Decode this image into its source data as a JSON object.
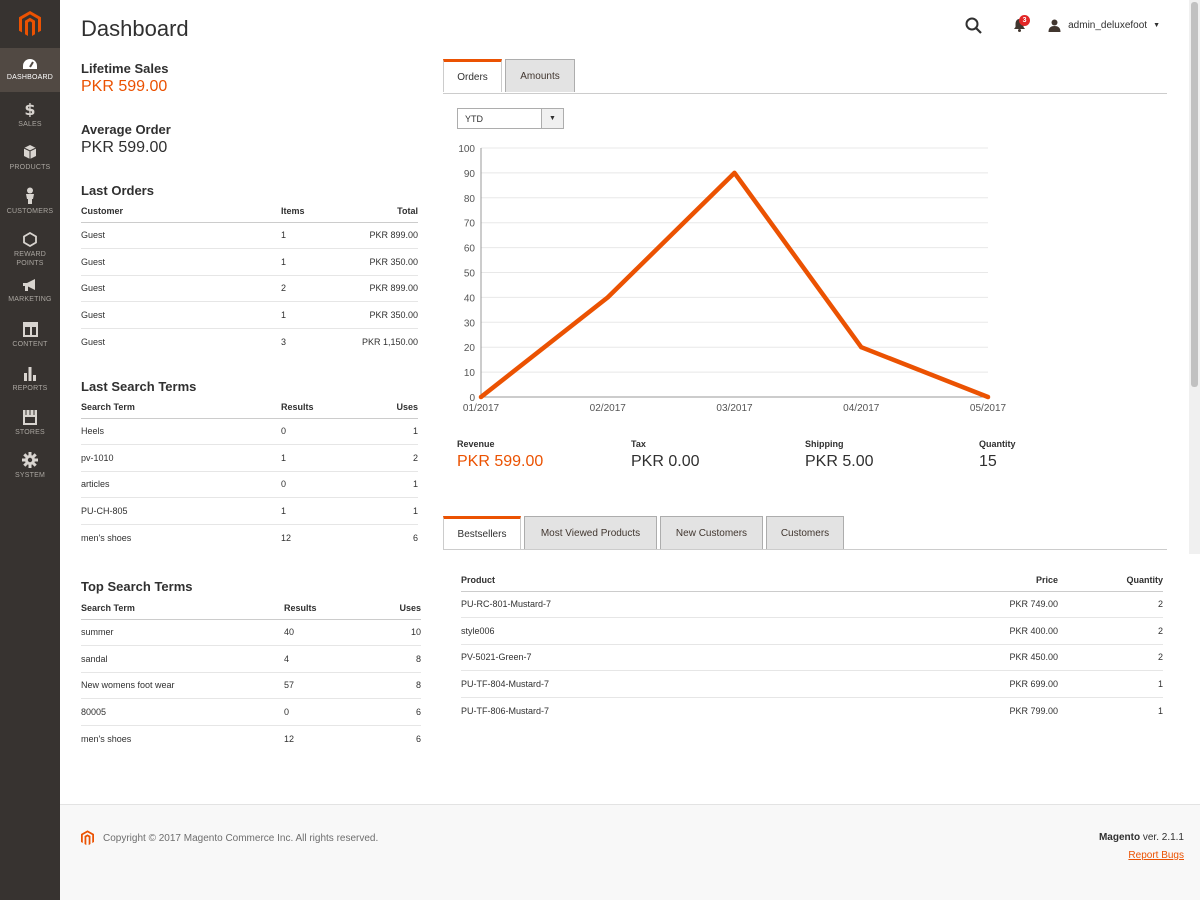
{
  "nav": {
    "items": [
      {
        "label": "DASHBOARD",
        "icon": "dashboard-icon"
      },
      {
        "label": "SALES",
        "icon": "dollar-icon"
      },
      {
        "label": "PRODUCTS",
        "icon": "box-icon"
      },
      {
        "label": "CUSTOMERS",
        "icon": "person-icon"
      },
      {
        "label": "REWARD POINTS",
        "icon": "hexagon-icon"
      },
      {
        "label": "MARKETING",
        "icon": "megaphone-icon"
      },
      {
        "label": "CONTENT",
        "icon": "layout-icon"
      },
      {
        "label": "REPORTS",
        "icon": "bar-chart-icon"
      },
      {
        "label": "STORES",
        "icon": "store-icon"
      },
      {
        "label": "SYSTEM",
        "icon": "gear-icon"
      }
    ]
  },
  "header": {
    "title": "Dashboard",
    "notifications": "3",
    "user": "admin_deluxefoot"
  },
  "stats": {
    "lifetime_label": "Lifetime Sales",
    "lifetime_value": "PKR 599.00",
    "average_label": "Average Order",
    "average_value": "PKR 599.00"
  },
  "last_orders": {
    "title": "Last Orders",
    "headers": [
      "Customer",
      "Items",
      "Total"
    ],
    "rows": [
      [
        "Guest",
        "1",
        "PKR 899.00"
      ],
      [
        "Guest",
        "1",
        "PKR 350.00"
      ],
      [
        "Guest",
        "2",
        "PKR 899.00"
      ],
      [
        "Guest",
        "1",
        "PKR 350.00"
      ],
      [
        "Guest",
        "3",
        "PKR 1,150.00"
      ]
    ]
  },
  "last_search": {
    "title": "Last Search Terms",
    "headers": [
      "Search Term",
      "Results",
      "Uses"
    ],
    "rows": [
      [
        "Heels",
        "0",
        "1"
      ],
      [
        "pv-1010",
        "1",
        "2"
      ],
      [
        "articles",
        "0",
        "1"
      ],
      [
        "PU-CH-805",
        "1",
        "1"
      ],
      [
        "men's shoes",
        "12",
        "6"
      ]
    ]
  },
  "top_search": {
    "title": "Top Search Terms",
    "headers": [
      "Search Term",
      "Results",
      "Uses"
    ],
    "rows": [
      [
        "summer",
        "40",
        "10"
      ],
      [
        "sandal",
        "4",
        "8"
      ],
      [
        "New womens foot wear",
        "57",
        "8"
      ],
      [
        "80005",
        "0",
        "6"
      ],
      [
        "men's shoes",
        "12",
        "6"
      ]
    ]
  },
  "chart_tabs": {
    "orders": "Orders",
    "amounts": "Amounts"
  },
  "period": {
    "selected": "YTD"
  },
  "chart_data": {
    "type": "line",
    "title": "",
    "xlabel": "",
    "ylabel": "",
    "x": [
      "01/2017",
      "02/2017",
      "03/2017",
      "04/2017",
      "05/2017"
    ],
    "values": [
      0,
      40,
      90,
      20,
      0
    ],
    "ylim": [
      0,
      100
    ],
    "yticks": [
      0,
      10,
      20,
      30,
      40,
      50,
      60,
      70,
      80,
      90,
      100
    ],
    "grid": true,
    "color": "#eb5202"
  },
  "totals": [
    {
      "label": "Revenue",
      "value": "PKR 599.00"
    },
    {
      "label": "Tax",
      "value": "PKR 0.00"
    },
    {
      "label": "Shipping",
      "value": "PKR 5.00"
    },
    {
      "label": "Quantity",
      "value": "15"
    }
  ],
  "product_tabs": [
    "Bestsellers",
    "Most Viewed Products",
    "New Customers",
    "Customers"
  ],
  "bestsellers": {
    "headers": [
      "Product",
      "Price",
      "Quantity"
    ],
    "rows": [
      [
        "PU-RC-801-Mustard-7",
        "PKR 749.00",
        "2"
      ],
      [
        "style006",
        "PKR 400.00",
        "2"
      ],
      [
        "PV-5021-Green-7",
        "PKR 450.00",
        "2"
      ],
      [
        "PU-TF-804-Mustard-7",
        "PKR 699.00",
        "1"
      ],
      [
        "PU-TF-806-Mustard-7",
        "PKR 799.00",
        "1"
      ]
    ]
  },
  "footer": {
    "copyright": "Copyright © 2017 Magento Commerce Inc. All rights reserved.",
    "brand": "Magento",
    "version": " ver. 2.1.1",
    "report_bugs": "Report Bugs"
  },
  "colors": {
    "accent": "#eb5202",
    "sidebar": "#373330"
  }
}
